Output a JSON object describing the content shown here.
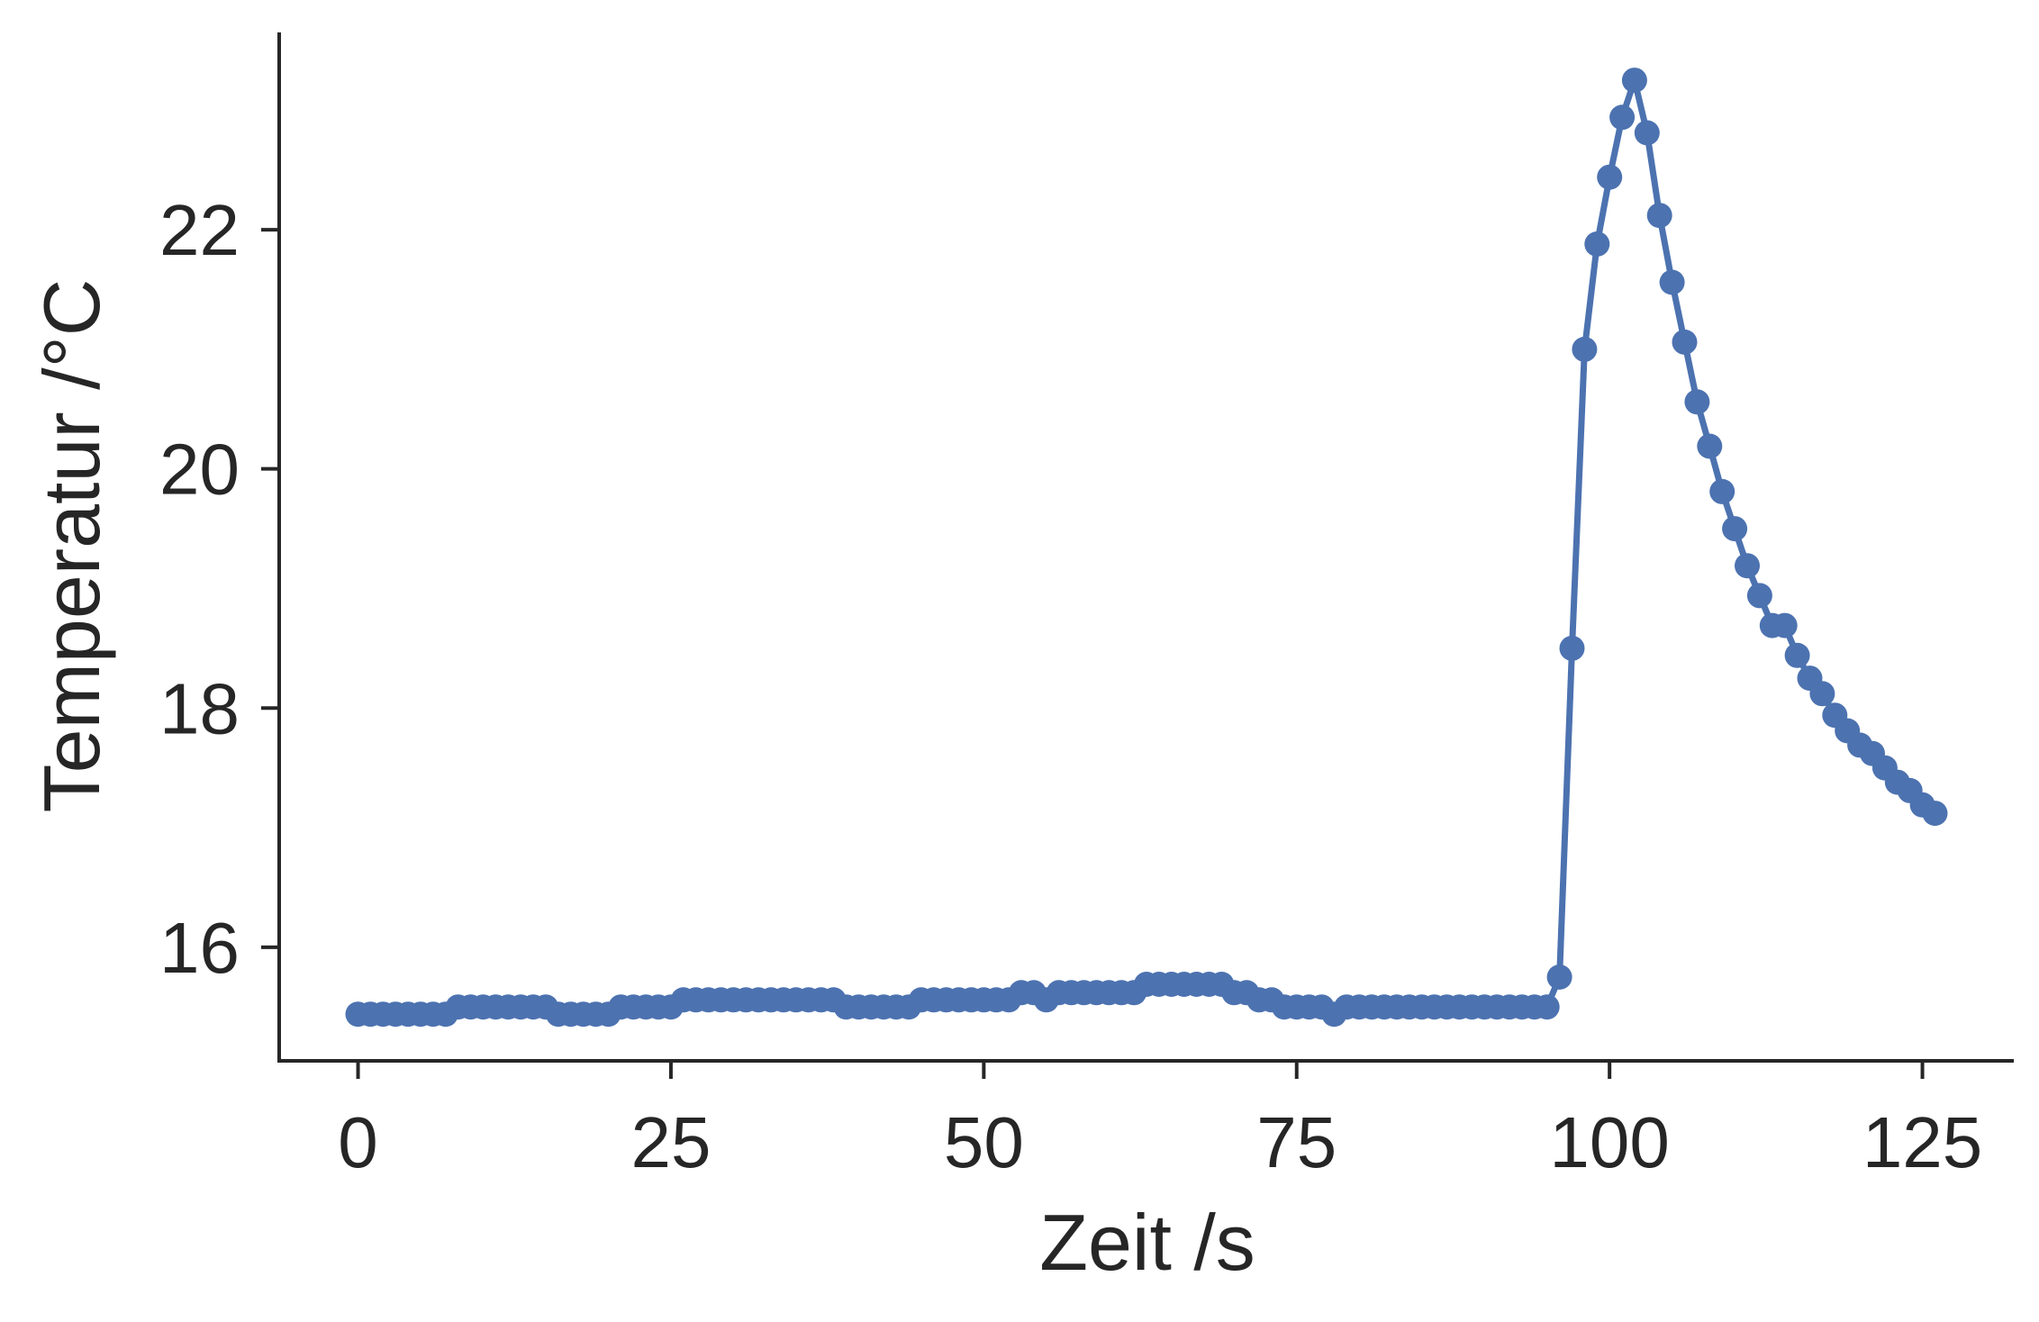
{
  "chart_data": {
    "type": "line",
    "title": "",
    "xlabel": "Zeit /s",
    "ylabel": "Temperatur /°C",
    "xlim": [
      -6.3,
      132.3
    ],
    "ylim": [
      15.05,
      23.65
    ],
    "xticks": [
      0,
      25,
      50,
      75,
      100,
      125
    ],
    "yticks": [
      16,
      18,
      20,
      22
    ],
    "grid": false,
    "legend": "none",
    "marker": "circle",
    "colors": {
      "series": "#4c72b0",
      "axis": "#262626"
    },
    "series": [
      {
        "x": [
          0,
          1,
          2,
          3,
          4,
          5,
          6,
          7,
          8,
          9,
          10,
          11,
          12,
          13,
          14,
          15,
          16,
          17,
          18,
          19,
          20,
          21,
          22,
          23,
          24,
          25,
          26,
          27,
          28,
          29,
          30,
          31,
          32,
          33,
          34,
          35,
          36,
          37,
          38,
          39,
          40,
          41,
          42,
          43,
          44,
          45,
          46,
          47,
          48,
          49,
          50,
          51,
          52,
          53,
          54,
          55,
          56,
          57,
          58,
          59,
          60,
          61,
          62,
          63,
          64,
          65,
          66,
          67,
          68,
          69,
          70,
          71,
          72,
          73,
          74,
          75,
          76,
          77,
          78,
          79,
          80,
          81,
          82,
          83,
          84,
          85,
          86,
          87,
          88,
          89,
          90,
          91,
          92,
          93,
          94,
          95,
          96,
          97,
          98,
          99,
          100,
          101,
          102,
          103,
          104,
          105,
          106,
          107,
          108,
          109,
          110,
          111,
          112,
          113,
          114,
          115,
          116,
          117,
          118,
          119,
          120,
          121,
          122,
          123,
          124,
          125,
          126
        ],
        "y": [
          15.44,
          15.44,
          15.44,
          15.44,
          15.44,
          15.44,
          15.44,
          15.44,
          15.5,
          15.5,
          15.5,
          15.5,
          15.5,
          15.5,
          15.5,
          15.5,
          15.44,
          15.44,
          15.44,
          15.44,
          15.44,
          15.5,
          15.5,
          15.5,
          15.5,
          15.5,
          15.56,
          15.56,
          15.56,
          15.56,
          15.56,
          15.56,
          15.56,
          15.56,
          15.56,
          15.56,
          15.56,
          15.56,
          15.56,
          15.5,
          15.5,
          15.5,
          15.5,
          15.5,
          15.5,
          15.56,
          15.56,
          15.56,
          15.56,
          15.56,
          15.56,
          15.56,
          15.56,
          15.62,
          15.62,
          15.56,
          15.62,
          15.62,
          15.62,
          15.62,
          15.62,
          15.62,
          15.62,
          15.69,
          15.69,
          15.69,
          15.69,
          15.69,
          15.69,
          15.69,
          15.62,
          15.62,
          15.56,
          15.56,
          15.5,
          15.5,
          15.5,
          15.5,
          15.44,
          15.5,
          15.5,
          15.5,
          15.5,
          15.5,
          15.5,
          15.5,
          15.5,
          15.5,
          15.5,
          15.5,
          15.5,
          15.5,
          15.5,
          15.5,
          15.5,
          15.5,
          15.75,
          18.5,
          21.0,
          21.88,
          22.44,
          22.94,
          23.25,
          22.81,
          22.12,
          21.56,
          21.06,
          20.56,
          20.19,
          19.81,
          19.5,
          19.19,
          18.94,
          18.69,
          18.69,
          18.44,
          18.25,
          18.12,
          17.94,
          17.81,
          17.69,
          17.62,
          17.5,
          17.38,
          17.31,
          17.19,
          17.12
        ]
      }
    ]
  }
}
